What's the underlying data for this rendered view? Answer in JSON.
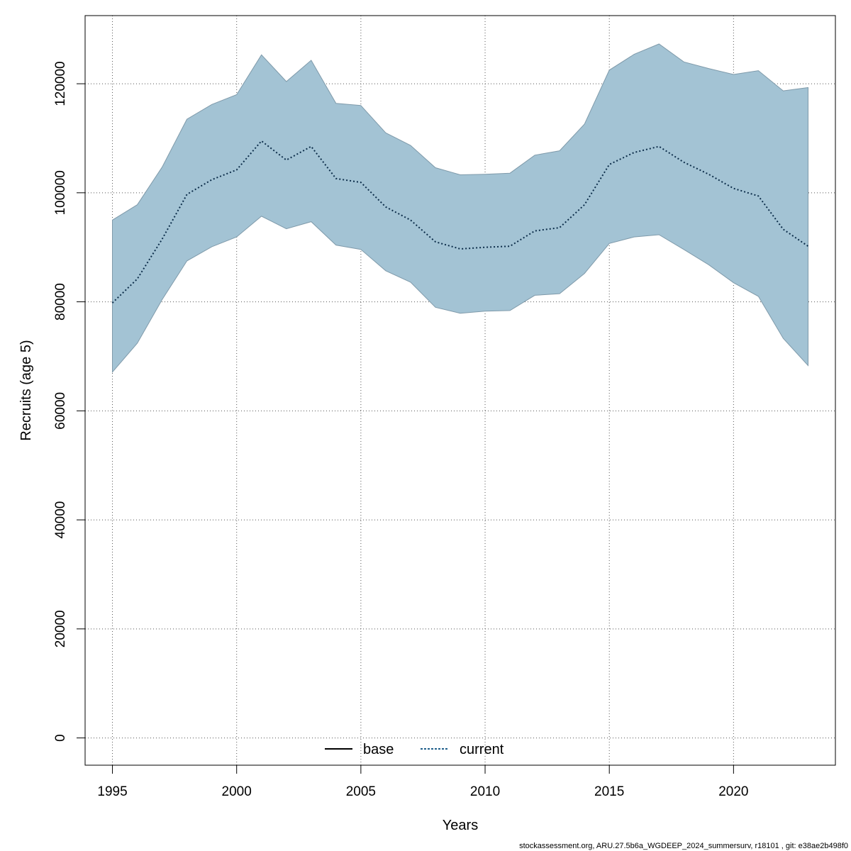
{
  "chart_data": {
    "type": "line",
    "xlabel": "Years",
    "ylabel": "Recruits (age 5)",
    "xlim": [
      1993.9,
      2024.1
    ],
    "ylim": [
      -5000,
      132500
    ],
    "x_ticks": [
      1995,
      2000,
      2005,
      2010,
      2015,
      2020
    ],
    "y_ticks": [
      0,
      20000,
      40000,
      60000,
      80000,
      100000,
      120000
    ],
    "grid": true,
    "legend_position": "bottom",
    "legend": [
      {
        "label": "base",
        "style": "solid",
        "color": "#000000"
      },
      {
        "label": "current",
        "style": "dotted",
        "color": "#1f5f8b"
      }
    ],
    "x": [
      1995,
      1996,
      1997,
      1998,
      1999,
      2000,
      2001,
      2002,
      2003,
      2004,
      2005,
      2006,
      2007,
      2008,
      2009,
      2010,
      2011,
      2012,
      2013,
      2014,
      2015,
      2016,
      2017,
      2018,
      2019,
      2020,
      2021,
      2022,
      2023
    ],
    "series": [
      {
        "name": "current",
        "values": [
          79800,
          84200,
          91500,
          99700,
          102400,
          104200,
          109500,
          106000,
          108500,
          102600,
          101900,
          97400,
          95000,
          91000,
          89700,
          90000,
          90200,
          93000,
          93600,
          97800,
          105200,
          107400,
          108500,
          105600,
          103400,
          100800,
          99400,
          93300,
          90200
        ],
        "lower": [
          67100,
          72400,
          80400,
          87500,
          90100,
          91900,
          95700,
          93400,
          94700,
          90400,
          89600,
          85700,
          83600,
          79000,
          77900,
          78300,
          78400,
          81200,
          81500,
          85200,
          90700,
          91900,
          92300,
          89600,
          86800,
          83500,
          81000,
          73300,
          68300
        ],
        "upper": [
          95000,
          97800,
          104700,
          113500,
          116200,
          118000,
          125300,
          120400,
          124300,
          116400,
          116000,
          111000,
          108700,
          104600,
          103300,
          103400,
          103600,
          106900,
          107700,
          112600,
          122500,
          125400,
          127300,
          124000,
          122800,
          121700,
          122400,
          118700,
          119300
        ]
      }
    ],
    "band_color": "#a3c3d4",
    "band_edge_color": "#7f9aaa",
    "line_color": "#0c2d4a"
  },
  "footer": "stockassessment.org, ARU.27.5b6a_WGDEEP_2024_summersurv, r18101 , git: e38ae2b498f0"
}
